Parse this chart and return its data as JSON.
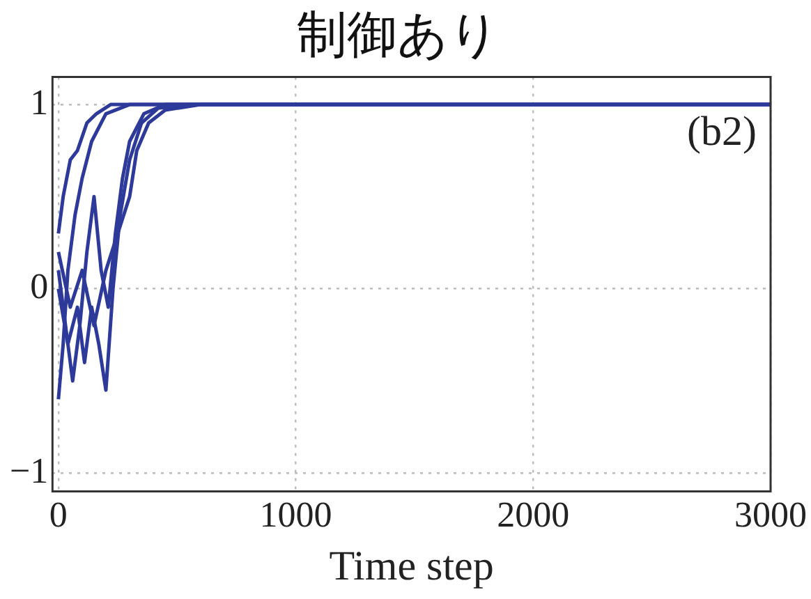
{
  "chart_data": {
    "type": "line",
    "title": "制御あり",
    "xlabel": "Time step",
    "annotations": [
      "(b2)"
    ],
    "xlim": [
      -25,
      3000
    ],
    "ylim": [
      -1.1,
      1.15
    ],
    "xticks": [
      0,
      1000,
      2000,
      3000
    ],
    "yticks": [
      -1,
      0,
      1
    ],
    "grid": true,
    "legend": false,
    "marker": "none",
    "line_style": "solid",
    "series": [
      {
        "color": "#2e3a9a",
        "x": [
          0,
          20,
          50,
          80,
          120,
          160,
          220,
          400,
          3000
        ],
        "values": [
          0.3,
          0.5,
          0.7,
          0.75,
          0.9,
          0.95,
          1,
          1,
          1
        ]
      },
      {
        "color": "#2e3a9a",
        "x": [
          0,
          20,
          40,
          70,
          100,
          140,
          200,
          300,
          3000
        ],
        "values": [
          -0.6,
          -0.3,
          0.1,
          0.4,
          0.6,
          0.8,
          0.95,
          1,
          1
        ]
      },
      {
        "color": "#2e3a9a",
        "x": [
          0,
          30,
          60,
          90,
          120,
          150,
          180,
          210,
          240,
          270,
          300,
          360,
          450,
          3000
        ],
        "values": [
          0.1,
          -0.2,
          -0.5,
          -0.2,
          0.2,
          0.5,
          0.1,
          -0.1,
          0.3,
          0.6,
          0.8,
          0.95,
          1,
          1
        ]
      },
      {
        "color": "#2e3a9a",
        "x": [
          0,
          40,
          80,
          110,
          140,
          170,
          200,
          230,
          260,
          300,
          350,
          420,
          550,
          3000
        ],
        "values": [
          0,
          -0.3,
          -0.1,
          -0.4,
          -0.1,
          -0.3,
          -0.55,
          0,
          0.4,
          0.7,
          0.9,
          0.98,
          1,
          1
        ]
      },
      {
        "color": "#2e3a9a",
        "x": [
          0,
          50,
          100,
          150,
          200,
          250,
          300,
          330,
          380,
          450,
          600,
          3000
        ],
        "values": [
          0.2,
          -0.1,
          0.1,
          -0.2,
          0.1,
          0.3,
          0.5,
          0.75,
          0.9,
          0.97,
          1,
          1
        ]
      }
    ]
  }
}
